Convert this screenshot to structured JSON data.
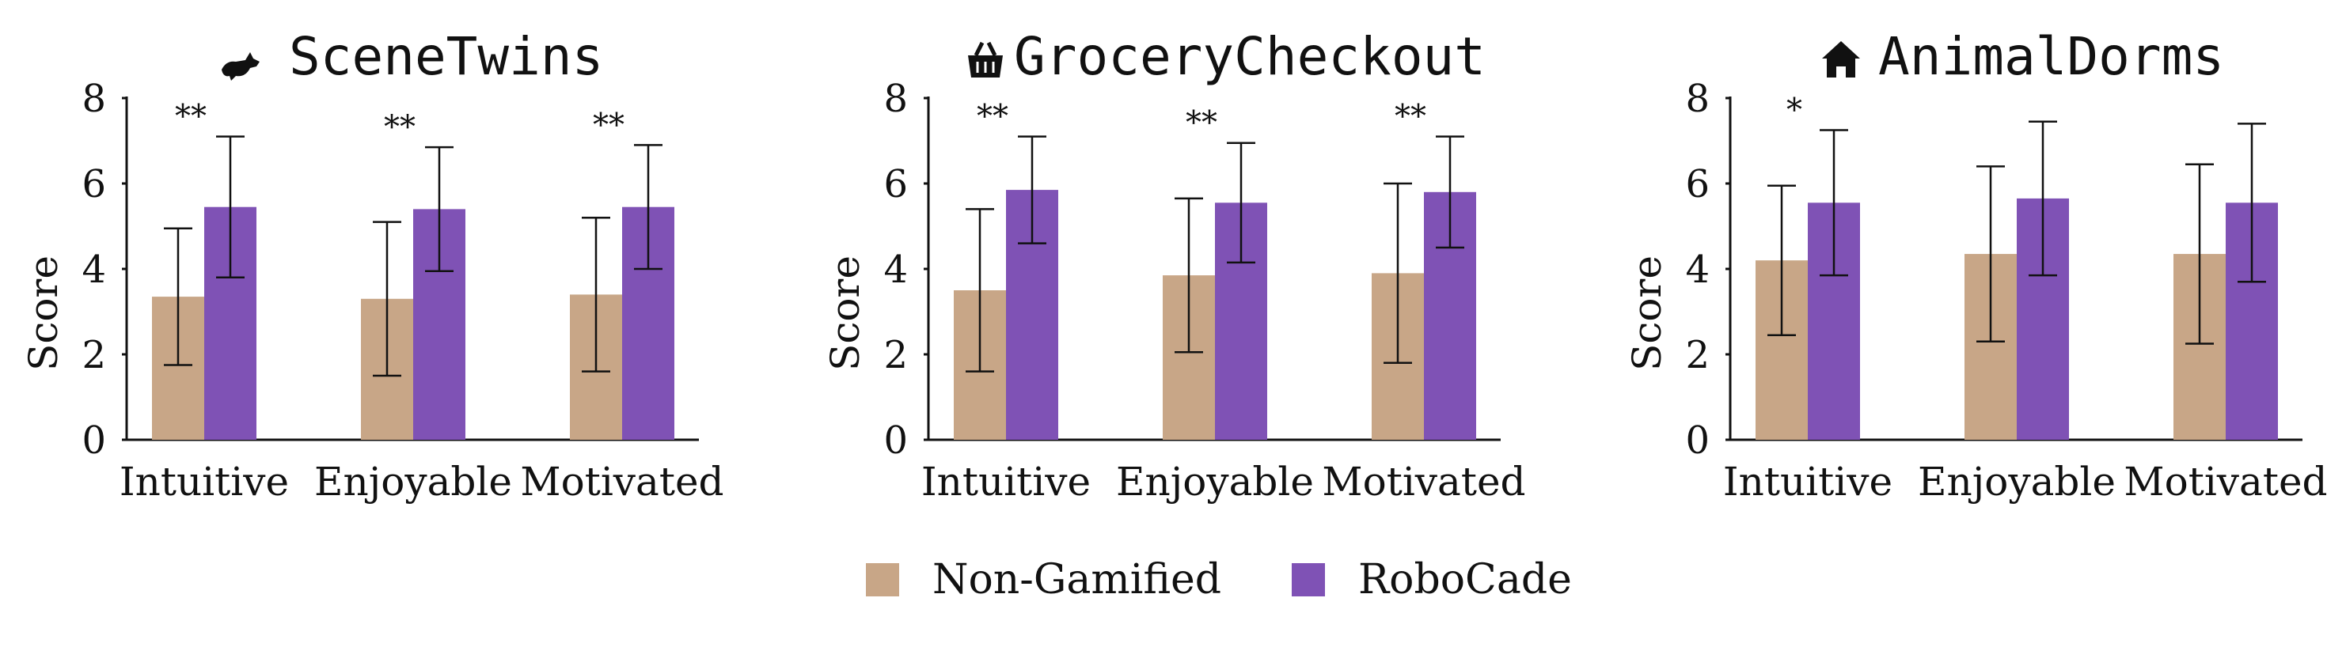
{
  "chart_data": [
    {
      "type": "bar",
      "title": "SceneTwins",
      "title_icon": "fox-icon",
      "ylabel": "Score",
      "ylim": [
        0,
        8
      ],
      "yticks": [
        0,
        2,
        4,
        6,
        8
      ],
      "categories": [
        "Intuitive",
        "Enjoyable",
        "Motivated"
      ],
      "series": [
        {
          "name": "Non-Gamified",
          "values": [
            3.35,
            3.3,
            3.4
          ],
          "errors": [
            1.6,
            1.8,
            1.8
          ]
        },
        {
          "name": "RoboCade",
          "values": [
            5.45,
            5.4,
            5.45
          ],
          "errors": [
            1.65,
            1.45,
            1.45
          ]
        }
      ],
      "significance": [
        "**",
        "**",
        "**"
      ]
    },
    {
      "type": "bar",
      "title": "GroceryCheckout",
      "title_icon": "basket-icon",
      "ylabel": "Score",
      "ylim": [
        0,
        8
      ],
      "yticks": [
        0,
        2,
        4,
        6,
        8
      ],
      "categories": [
        "Intuitive",
        "Enjoyable",
        "Motivated"
      ],
      "series": [
        {
          "name": "Non-Gamified",
          "values": [
            3.5,
            3.85,
            3.9
          ],
          "errors": [
            1.9,
            1.8,
            2.1
          ]
        },
        {
          "name": "RoboCade",
          "values": [
            5.85,
            5.55,
            5.8
          ],
          "errors": [
            1.25,
            1.4,
            1.3
          ]
        }
      ],
      "significance": [
        "**",
        "**",
        "**"
      ]
    },
    {
      "type": "bar",
      "title": "AnimalDorms",
      "title_icon": "house-icon",
      "ylabel": "Score",
      "ylim": [
        0,
        8
      ],
      "yticks": [
        0,
        2,
        4,
        6,
        8
      ],
      "categories": [
        "Intuitive",
        "Enjoyable",
        "Motivated"
      ],
      "series": [
        {
          "name": "Non-Gamified",
          "values": [
            4.2,
            4.35,
            4.35
          ],
          "errors": [
            1.75,
            2.05,
            2.1
          ]
        },
        {
          "name": "RoboCade",
          "values": [
            5.55,
            5.65,
            5.55
          ],
          "errors": [
            1.7,
            1.8,
            1.85
          ]
        }
      ],
      "significance": [
        "*",
        "",
        ""
      ]
    }
  ],
  "legend": {
    "items": [
      {
        "label": "Non-Gamified",
        "color": "#c8a687"
      },
      {
        "label": "RoboCade",
        "color": "#7f52b5"
      }
    ]
  },
  "colors": {
    "non_gamified": "#c8a687",
    "robocade": "#7f52b5",
    "axis": "#111111"
  }
}
